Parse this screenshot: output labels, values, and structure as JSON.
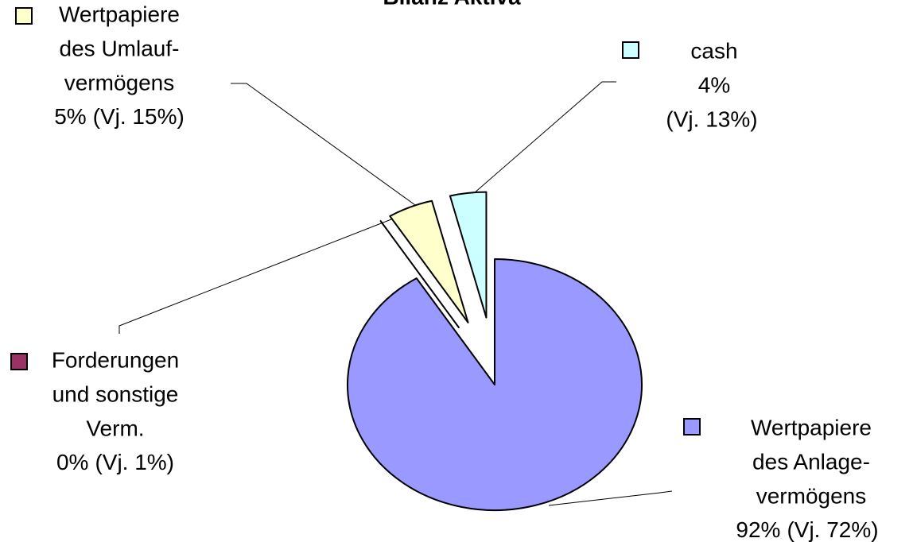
{
  "chart_data": {
    "type": "pie",
    "title": "Bilanz Aktiva",
    "categories": [
      [
        "Wertpapiere",
        "des Anlage-",
        "vermögens"
      ],
      [
        "Forderungen",
        "und sonstige",
        "Verm."
      ],
      [
        "Wertpapiere",
        "des Umlauf-",
        "vermögens"
      ],
      [
        "cash"
      ]
    ],
    "values": [
      92,
      0,
      5,
      4
    ],
    "value_labels": [
      "92%",
      "0%",
      "5%",
      "4%"
    ],
    "prior_labels": [
      "(Vj. 72%)",
      "(Vj. 1%)",
      "(Vj. 15%)",
      "(Vj. 13%)"
    ],
    "colors": [
      "#9999ff",
      "#993366",
      "#ffffcc",
      "#ccffff"
    ],
    "exploded": [
      false,
      true,
      true,
      true
    ]
  }
}
